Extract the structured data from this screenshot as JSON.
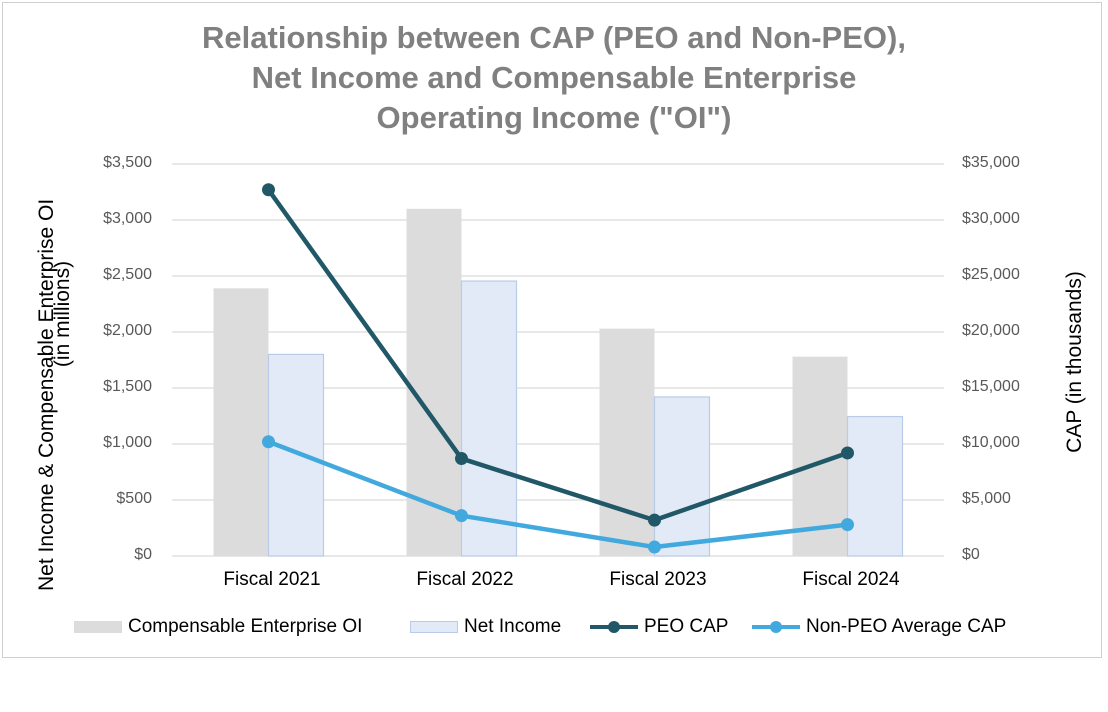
{
  "chart_data": {
    "type": "bar",
    "title_lines": [
      "Relationship between CAP (PEO and Non-PEO),",
      "Net Income and Compensable Enterprise",
      "Operating Income (\"OI\")"
    ],
    "categories": [
      "Fiscal 2021",
      "Fiscal 2022",
      "Fiscal 2023",
      "Fiscal 2024"
    ],
    "left_axis": {
      "label_lines": [
        "Net Income & Compensable Enterprise OI",
        "(in millions)"
      ],
      "ylim": [
        0,
        3500
      ],
      "ticks": [
        0,
        500,
        1000,
        1500,
        2000,
        2500,
        3000,
        3500
      ],
      "tick_labels": [
        "$0",
        "$500",
        "$1,000",
        "$1,500",
        "$2,000",
        "$2,500",
        "$3,000",
        "$3,500"
      ]
    },
    "right_axis": {
      "label": "CAP (in thousands)",
      "ylim": [
        0,
        35000
      ],
      "ticks": [
        0,
        5000,
        10000,
        15000,
        20000,
        25000,
        30000,
        35000
      ],
      "tick_labels": [
        "$0",
        "$5,000",
        "$10,000",
        "$15,000",
        "$20,000",
        "$25,000",
        "$30,000",
        "$35,000"
      ]
    },
    "bar_series": [
      {
        "name": "Compensable Enterprise OI",
        "axis": "left",
        "color": "#dcdcdc",
        "values": [
          2390,
          3100,
          2030,
          1780
        ]
      },
      {
        "name": "Net Income",
        "axis": "left",
        "color": "#e3eaf7",
        "edge": "#b9cbe6",
        "values": [
          1800,
          2455,
          1420,
          1245
        ]
      }
    ],
    "line_series": [
      {
        "name": "PEO CAP",
        "axis": "right",
        "color": "#215868",
        "values": [
          32700,
          8700,
          3200,
          9200
        ]
      },
      {
        "name": "Non-PEO Average CAP",
        "axis": "right",
        "color": "#41a9dd",
        "values": [
          10200,
          3600,
          800,
          2800
        ]
      }
    ],
    "grid": true,
    "legend_position": "bottom"
  }
}
